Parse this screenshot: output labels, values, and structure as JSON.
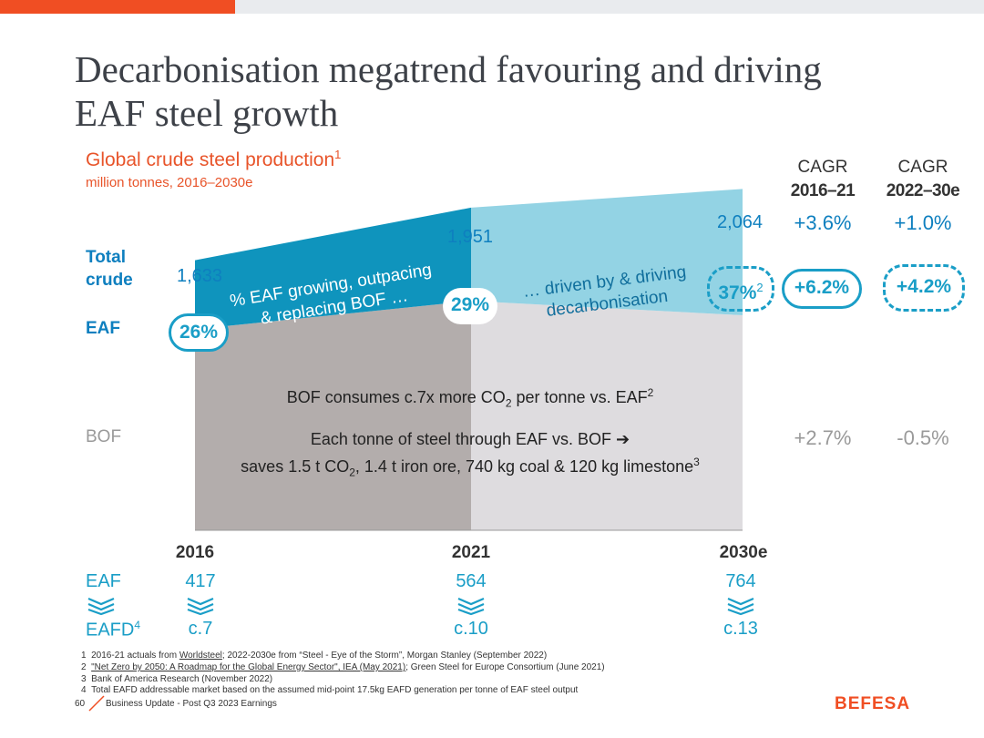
{
  "title": "Decarbonisation megatrend favouring and driving EAF steel growth",
  "subtitle": "Global crude steel production",
  "subtitle_sup": "1",
  "units_note": "million tonnes, 2016–2030e",
  "row_labels": {
    "total": "Total",
    "crude": "crude",
    "eaf": "EAF",
    "bof": "BOF",
    "eaf_bottom": "EAF",
    "eafd": "EAFD",
    "eafd_sup": "4"
  },
  "cagr_headers": [
    {
      "label": "CAGR",
      "period": "2016–21"
    },
    {
      "label": "CAGR",
      "period": "2022–30e"
    }
  ],
  "cagr_values": {
    "total": [
      "+3.6%",
      "+1.0%"
    ],
    "eaf": [
      "+6.2%",
      "+4.2%"
    ],
    "bof": [
      "+2.7%",
      "-0.5%"
    ]
  },
  "chart_data": {
    "type": "area",
    "years": [
      "2016",
      "2021",
      "2030e"
    ],
    "total_labels": [
      "1,633",
      "1,951",
      "2,064"
    ],
    "total": [
      1633,
      1951,
      2064
    ],
    "eaf": [
      417,
      564,
      764
    ],
    "bof_implied": [
      1216,
      1387,
      1300
    ],
    "eaf_share_labels": [
      "26%",
      "29%",
      "37%"
    ],
    "eaf_share_sup_2030": "2",
    "annotations": {
      "left_line1": "% EAF growing, outpacing",
      "left_line2": "& replacing BOF …",
      "right_line1": "… driven by & driving",
      "right_line2": "decarbonisation",
      "bof_line1_a": "BOF consumes c.7x more CO",
      "bof_line1_sub": "2",
      "bof_line1_b": " per tonne vs. EAF",
      "bof_line1_sup": "2",
      "bof_line2": "Each tonne of steel through EAF vs. BOF ➔",
      "bof_line3_a": "saves 1.5 t CO",
      "bof_line3_sub": "2",
      "bof_line3_b": ", 1.4 t iron ore, 740 kg coal & 120 kg limestone",
      "bof_line3_sup": "3"
    },
    "colors": {
      "eaf_hist": "#0f94bd",
      "eaf_fcst": "#93d3e4",
      "bof_hist": "#b3adac",
      "bof_fcst": "#dedcdf"
    }
  },
  "eaf_values": [
    "417",
    "564",
    "764"
  ],
  "eafd_values": [
    "c.7",
    "c.10",
    "c.13"
  ],
  "footnotes": [
    {
      "num": "1",
      "text_a": "2016-21 actuals from ",
      "link": "Worldsteel",
      "text_b": "; 2022-2030e from “Steel - Eye of the Storm”, Morgan Stanley (September 2022)"
    },
    {
      "num": "2",
      "text_a": "",
      "link": "\"Net Zero by 2050: A Roadmap for the Global Energy Sector\", IEA (May 2021)",
      "text_b": "; Green Steel for Europe Consortium (June 2021)"
    },
    {
      "num": "3",
      "text_a": "Bank of America Research (November 2022)",
      "link": "",
      "text_b": ""
    },
    {
      "num": "4",
      "text_a": "Total EAFD addressable market based on the assumed mid-point 17.5kg EAFD generation per tonne of EAF steel output",
      "link": "",
      "text_b": ""
    }
  ],
  "footer": {
    "page": "60",
    "text": "Business Update - Post Q3 2023 Earnings",
    "logo": "BEFESA"
  }
}
